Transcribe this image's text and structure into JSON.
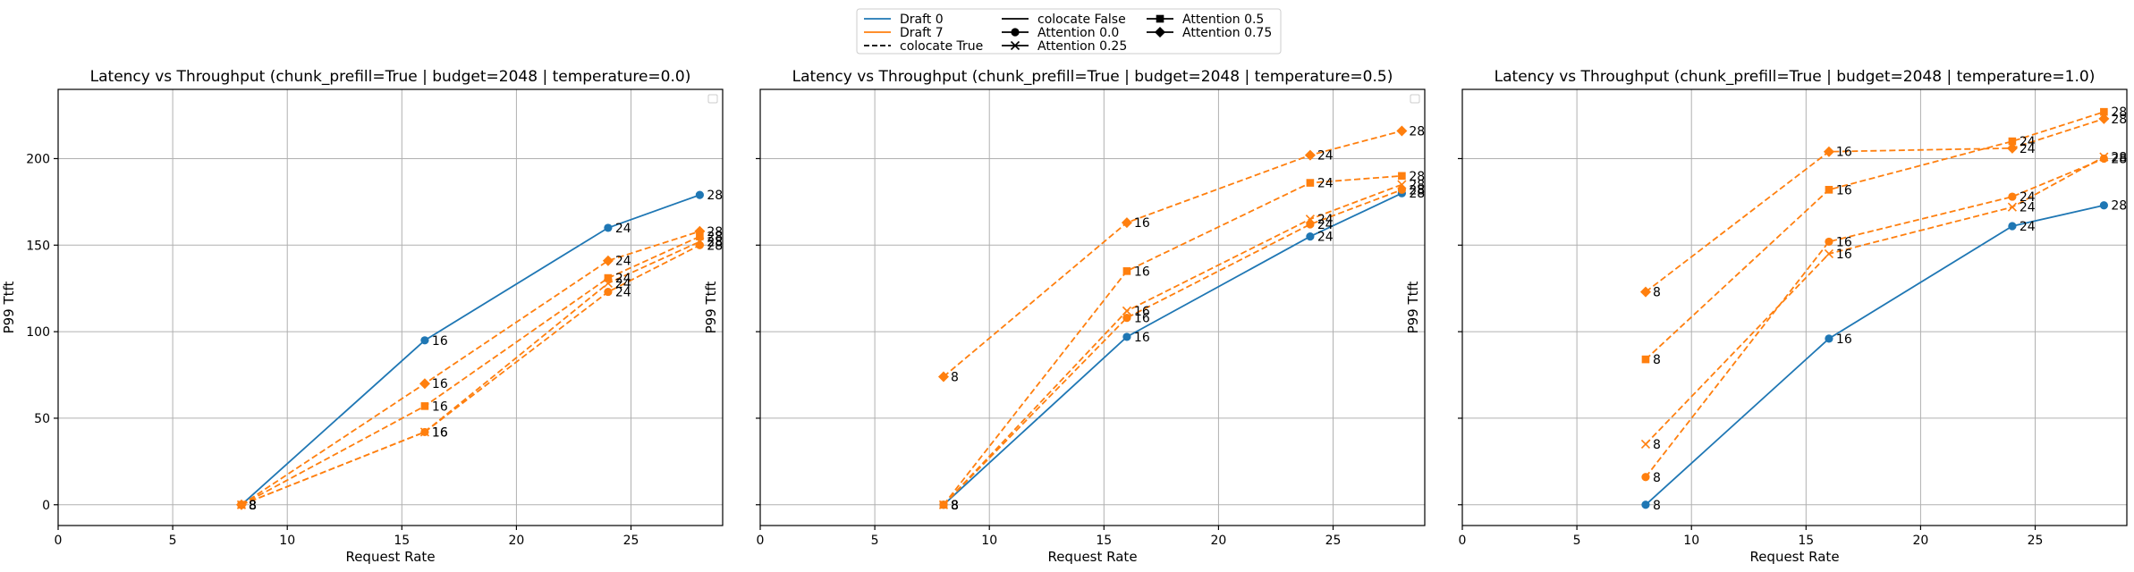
{
  "colors": {
    "draft0": "#1f77b4",
    "draft7": "#ff7f0e"
  },
  "legend": {
    "placement": "top-center",
    "entries": [
      {
        "label": "Draft 0",
        "style": "line",
        "color": "#1f77b4"
      },
      {
        "label": "Draft 7",
        "style": "line",
        "color": "#ff7f0e"
      },
      {
        "label": "colocate True",
        "style": "dashed",
        "color": "#000000"
      },
      {
        "label": "colocate False",
        "style": "line",
        "color": "#000000"
      },
      {
        "label": "Attention 0.0",
        "style": "circle",
        "color": "#000000"
      },
      {
        "label": "Attention 0.25",
        "style": "x",
        "color": "#000000"
      },
      {
        "label": "Attention 0.5",
        "style": "square",
        "color": "#000000"
      },
      {
        "label": "Attention 0.75",
        "style": "diamond",
        "color": "#000000"
      }
    ]
  },
  "chart_data": [
    {
      "type": "line",
      "title": "Latency vs Throughput (chunk_prefill=True | budget=2048 | temperature=0.0)",
      "xlabel": "Request Rate",
      "ylabel": "P99 Ttft",
      "xlim": [
        0,
        29
      ],
      "ylim": [
        -12,
        240
      ],
      "xticks": [
        0,
        5,
        10,
        15,
        20,
        25
      ],
      "yticks": [
        0,
        50,
        100,
        150,
        200
      ],
      "grid": true,
      "show_yticklabels": true,
      "empty_legend_box": true,
      "series": [
        {
          "color": "#1f77b4",
          "dashed": false,
          "marker": "circle",
          "x": [
            8,
            16,
            24,
            28
          ],
          "y": [
            0,
            95,
            160,
            179
          ]
        },
        {
          "color": "#ff7f0e",
          "dashed": true,
          "marker": "circle",
          "x": [
            8,
            16,
            24,
            28
          ],
          "y": [
            0,
            42,
            123,
            150
          ]
        },
        {
          "color": "#ff7f0e",
          "dashed": true,
          "marker": "x",
          "x": [
            8,
            16,
            24,
            28
          ],
          "y": [
            0,
            42,
            128,
            152
          ]
        },
        {
          "color": "#ff7f0e",
          "dashed": true,
          "marker": "square",
          "x": [
            8,
            16,
            24,
            28
          ],
          "y": [
            0,
            57,
            131,
            155
          ]
        },
        {
          "color": "#ff7f0e",
          "dashed": true,
          "marker": "diamond",
          "x": [
            8,
            16,
            24,
            28
          ],
          "y": [
            0,
            70,
            141,
            158
          ]
        }
      ]
    },
    {
      "type": "line",
      "title": "Latency vs Throughput (chunk_prefill=True | budget=2048 | temperature=0.5)",
      "xlabel": "Request Rate",
      "ylabel": "P99 Ttft",
      "xlim": [
        0,
        29
      ],
      "ylim": [
        -12,
        240
      ],
      "xticks": [
        0,
        5,
        10,
        15,
        20,
        25
      ],
      "yticks": [
        0,
        50,
        100,
        150,
        200
      ],
      "grid": true,
      "show_yticklabels": false,
      "empty_legend_box": true,
      "series": [
        {
          "color": "#1f77b4",
          "dashed": false,
          "marker": "circle",
          "x": [
            8,
            16,
            24,
            28
          ],
          "y": [
            0,
            97,
            155,
            180
          ]
        },
        {
          "color": "#ff7f0e",
          "dashed": true,
          "marker": "circle",
          "x": [
            8,
            16,
            24,
            28
          ],
          "y": [
            0,
            108,
            162,
            182
          ]
        },
        {
          "color": "#ff7f0e",
          "dashed": true,
          "marker": "x",
          "x": [
            8,
            16,
            24,
            28
          ],
          "y": [
            0,
            112,
            165,
            185
          ]
        },
        {
          "color": "#ff7f0e",
          "dashed": true,
          "marker": "square",
          "x": [
            8,
            16,
            24,
            28
          ],
          "y": [
            0,
            135,
            186,
            190
          ]
        },
        {
          "color": "#ff7f0e",
          "dashed": true,
          "marker": "diamond",
          "x": [
            8,
            16,
            24,
            28
          ],
          "y": [
            74,
            163,
            202,
            216
          ]
        }
      ]
    },
    {
      "type": "line",
      "title": "Latency vs Throughput (chunk_prefill=True | budget=2048 | temperature=1.0)",
      "xlabel": "Request Rate",
      "ylabel": "P99 Ttft",
      "xlim": [
        0,
        29
      ],
      "ylim": [
        -12,
        240
      ],
      "xticks": [
        0,
        5,
        10,
        15,
        20,
        25
      ],
      "yticks": [
        0,
        50,
        100,
        150,
        200
      ],
      "grid": true,
      "show_yticklabels": false,
      "empty_legend_box": false,
      "series": [
        {
          "color": "#1f77b4",
          "dashed": false,
          "marker": "circle",
          "x": [
            8,
            16,
            24,
            28
          ],
          "y": [
            0,
            96,
            161,
            173
          ]
        },
        {
          "color": "#ff7f0e",
          "dashed": true,
          "marker": "circle",
          "x": [
            8,
            16,
            24,
            28
          ],
          "y": [
            16,
            152,
            178,
            200
          ]
        },
        {
          "color": "#ff7f0e",
          "dashed": true,
          "marker": "x",
          "x": [
            8,
            16,
            24,
            28
          ],
          "y": [
            35,
            145,
            172,
            201
          ]
        },
        {
          "color": "#ff7f0e",
          "dashed": true,
          "marker": "square",
          "x": [
            8,
            16,
            24,
            28
          ],
          "y": [
            84,
            182,
            210,
            227
          ]
        },
        {
          "color": "#ff7f0e",
          "dashed": true,
          "marker": "diamond",
          "x": [
            8,
            16,
            24,
            28
          ],
          "y": [
            123,
            204,
            206,
            223
          ]
        }
      ]
    }
  ]
}
